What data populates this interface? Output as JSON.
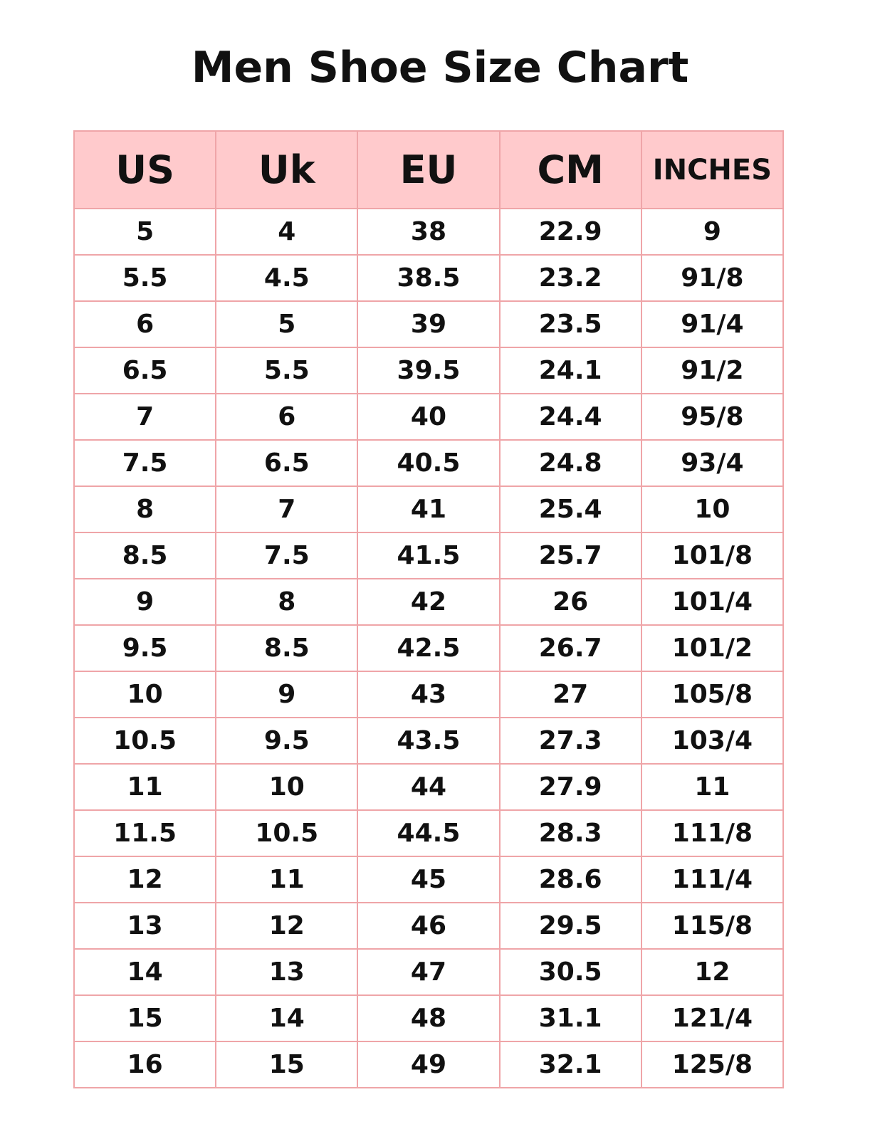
{
  "title": "Men Shoe Size Chart",
  "colors": {
    "header_bg": "#ffcacc",
    "border": "#efa5a8",
    "text": "#111111"
  },
  "headers": [
    "US",
    "Uk",
    "EU",
    "CM",
    "INCHES"
  ],
  "rows": [
    [
      "5",
      "4",
      "38",
      "22.9",
      "9"
    ],
    [
      "5.5",
      "4.5",
      "38.5",
      "23.2",
      "91/8"
    ],
    [
      "6",
      "5",
      "39",
      "23.5",
      "91/4"
    ],
    [
      "6.5",
      "5.5",
      "39.5",
      "24.1",
      "91/2"
    ],
    [
      "7",
      "6",
      "40",
      "24.4",
      "95/8"
    ],
    [
      "7.5",
      "6.5",
      "40.5",
      "24.8",
      "93/4"
    ],
    [
      "8",
      "7",
      "41",
      "25.4",
      "10"
    ],
    [
      "8.5",
      "7.5",
      "41.5",
      "25.7",
      "101/8"
    ],
    [
      "9",
      "8",
      "42",
      "26",
      "101/4"
    ],
    [
      "9.5",
      "8.5",
      "42.5",
      "26.7",
      "101/2"
    ],
    [
      "10",
      "9",
      "43",
      "27",
      "105/8"
    ],
    [
      "10.5",
      "9.5",
      "43.5",
      "27.3",
      "103/4"
    ],
    [
      "11",
      "10",
      "44",
      "27.9",
      "11"
    ],
    [
      "11.5",
      "10.5",
      "44.5",
      "28.3",
      "111/8"
    ],
    [
      "12",
      "11",
      "45",
      "28.6",
      "111/4"
    ],
    [
      "13",
      "12",
      "46",
      "29.5",
      "115/8"
    ],
    [
      "14",
      "13",
      "47",
      "30.5",
      "12"
    ],
    [
      "15",
      "14",
      "48",
      "31.1",
      "121/4"
    ],
    [
      "16",
      "15",
      "49",
      "32.1",
      "125/8"
    ]
  ]
}
